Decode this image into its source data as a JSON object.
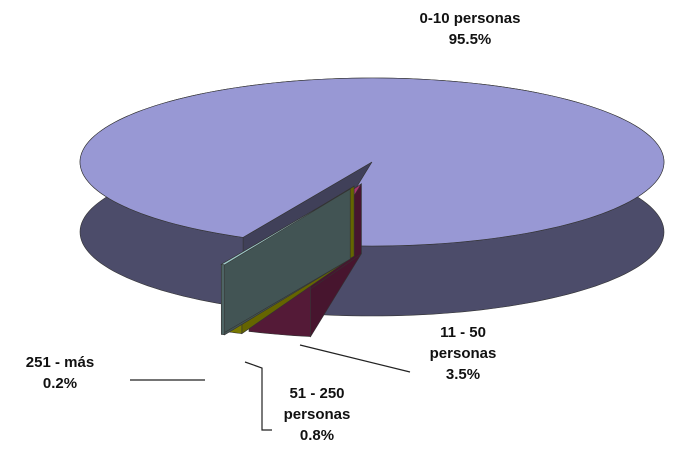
{
  "chart_data": {
    "type": "pie",
    "categories": [
      "0-10 personas",
      "11 - 50 personas",
      "51 - 250 personas",
      "251 - más"
    ],
    "values": [
      95.5,
      3.5,
      0.8,
      0.2
    ],
    "value_labels": [
      "95.5%",
      "3.5%",
      "0.8%",
      "0.2%"
    ],
    "colors": [
      "#9898d4",
      "#a8336e",
      "#f0f000",
      "#9cc8c8"
    ]
  }
}
